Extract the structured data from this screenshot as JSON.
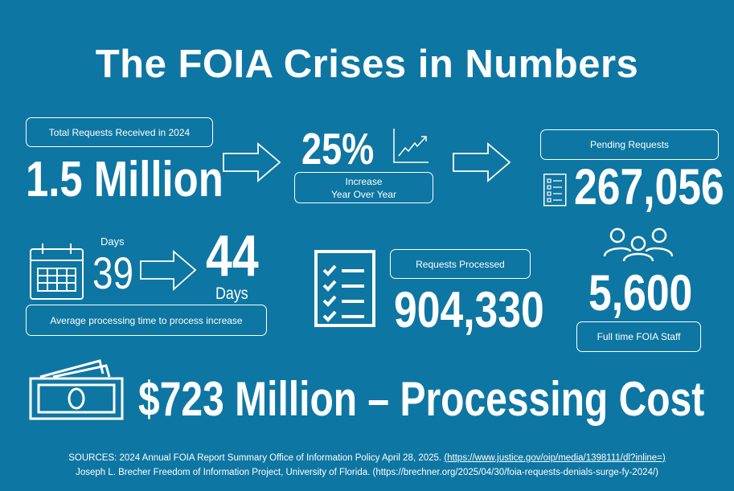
{
  "title": "The FOIA Crises in  Numbers",
  "total_requests": {
    "label": "Total Requests Received in 2024",
    "value": "1.5 Million"
  },
  "increase": {
    "value": "25%",
    "label_line1": "Increase",
    "label_line2": "Year Over Year"
  },
  "pending": {
    "label": "Pending Requests",
    "value": "267,056"
  },
  "processing_time": {
    "before_unit": "Days",
    "before": "39",
    "after": "44",
    "after_unit": "Days",
    "label": "Average processing time to process  increase"
  },
  "processed": {
    "label": "Requests Processed",
    "value": "904,330"
  },
  "staff": {
    "value": "5,600",
    "label": "Full time FOIA Staff"
  },
  "cost": {
    "value": "$723 Million – Processing Cost"
  },
  "sources": {
    "line1_text": "SOURCES: 2024 Annual FOIA Report Summary Office of Information Policy April 28, 2025. ",
    "line1_link": "(https://www.justice.gov/oip/media/1398111/dl?inline=)",
    "line2": "Joseph L. Brecher Freedom of Information Project, University of Florida. (https://brechner.org/2025/04/30/foia-requests-denials-surge-fy-2024/)"
  },
  "icons": [
    "arrow-right-icon",
    "line-chart-icon",
    "list-icon",
    "calendar-icon",
    "checklist-icon",
    "people-icon",
    "money-icon"
  ],
  "colors": {
    "background": "#0e76a2",
    "foreground": "#ffffff"
  }
}
